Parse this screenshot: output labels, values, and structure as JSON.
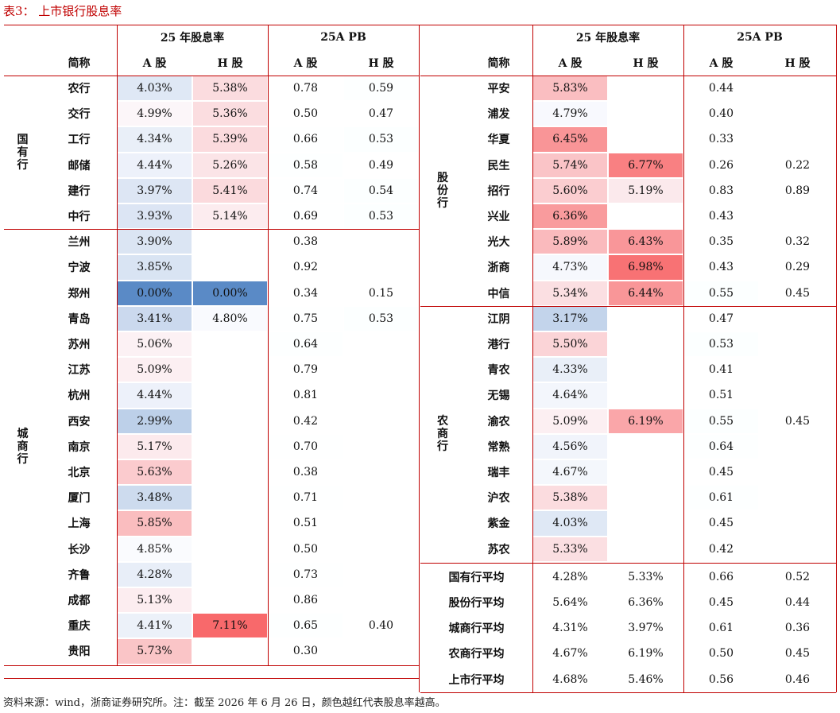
{
  "title": "表3： 上市银行股息率",
  "source": "资料来源：wind，浙商证券研究所。注：截至 2026 年 6 月 26 日，颜色越红代表股息率越高。",
  "colors": {
    "accent": "#c00000",
    "high": "#f8696b",
    "low": "#5a8ac6"
  },
  "headers": {
    "group1": "25 年股息率",
    "group2": "25A PB",
    "name": "简称",
    "a": "A 股",
    "h": "H 股"
  },
  "left": {
    "groups": [
      {
        "label": "国有行",
        "rows": [
          {
            "name": "农行",
            "a": "4.03%",
            "h": "5.38%",
            "pa": "0.78",
            "ph": "0.59"
          },
          {
            "name": "交行",
            "a": "4.99%",
            "h": "5.36%",
            "pa": "0.50",
            "ph": "0.47"
          },
          {
            "name": "工行",
            "a": "4.34%",
            "h": "5.39%",
            "pa": "0.66",
            "ph": "0.53"
          },
          {
            "name": "邮储",
            "a": "4.44%",
            "h": "5.26%",
            "pa": "0.58",
            "ph": "0.49"
          },
          {
            "name": "建行",
            "a": "3.97%",
            "h": "5.41%",
            "pa": "0.74",
            "ph": "0.54"
          },
          {
            "name": "中行",
            "a": "3.93%",
            "h": "5.14%",
            "pa": "0.69",
            "ph": "0.53"
          }
        ]
      },
      {
        "label": "城商行",
        "rows": [
          {
            "name": "兰州",
            "a": "3.90%",
            "h": "",
            "pa": "0.38",
            "ph": ""
          },
          {
            "name": "宁波",
            "a": "3.85%",
            "h": "",
            "pa": "0.92",
            "ph": ""
          },
          {
            "name": "郑州",
            "a": "0.00%",
            "h": "0.00%",
            "pa": "0.34",
            "ph": "0.15"
          },
          {
            "name": "青岛",
            "a": "3.41%",
            "h": "4.80%",
            "pa": "0.75",
            "ph": "0.53"
          },
          {
            "name": "苏州",
            "a": "5.06%",
            "h": "",
            "pa": "0.64",
            "ph": ""
          },
          {
            "name": "江苏",
            "a": "5.09%",
            "h": "",
            "pa": "0.79",
            "ph": ""
          },
          {
            "name": "杭州",
            "a": "4.44%",
            "h": "",
            "pa": "0.81",
            "ph": ""
          },
          {
            "name": "西安",
            "a": "2.99%",
            "h": "",
            "pa": "0.42",
            "ph": ""
          },
          {
            "name": "南京",
            "a": "5.17%",
            "h": "",
            "pa": "0.70",
            "ph": ""
          },
          {
            "name": "北京",
            "a": "5.63%",
            "h": "",
            "pa": "0.38",
            "ph": ""
          },
          {
            "name": "厦门",
            "a": "3.48%",
            "h": "",
            "pa": "0.71",
            "ph": ""
          },
          {
            "name": "上海",
            "a": "5.85%",
            "h": "",
            "pa": "0.51",
            "ph": ""
          },
          {
            "name": "长沙",
            "a": "4.85%",
            "h": "",
            "pa": "0.50",
            "ph": ""
          },
          {
            "name": "齐鲁",
            "a": "4.28%",
            "h": "",
            "pa": "0.73",
            "ph": ""
          },
          {
            "name": "成都",
            "a": "5.13%",
            "h": "",
            "pa": "0.86",
            "ph": ""
          },
          {
            "name": "重庆",
            "a": "4.41%",
            "h": "7.11%",
            "pa": "0.65",
            "ph": "0.40"
          },
          {
            "name": "贵阳",
            "a": "5.73%",
            "h": "",
            "pa": "0.30",
            "ph": ""
          }
        ]
      }
    ]
  },
  "right": {
    "groups": [
      {
        "label": "股份行",
        "rows": [
          {
            "name": "平安",
            "a": "5.83%",
            "h": "",
            "pa": "0.44",
            "ph": ""
          },
          {
            "name": "浦发",
            "a": "4.79%",
            "h": "",
            "pa": "0.40",
            "ph": ""
          },
          {
            "name": "华夏",
            "a": "6.45%",
            "h": "",
            "pa": "0.33",
            "ph": ""
          },
          {
            "name": "民生",
            "a": "5.74%",
            "h": "6.77%",
            "pa": "0.26",
            "ph": "0.22"
          },
          {
            "name": "招行",
            "a": "5.60%",
            "h": "5.19%",
            "pa": "0.83",
            "ph": "0.89"
          },
          {
            "name": "兴业",
            "a": "6.36%",
            "h": "",
            "pa": "0.43",
            "ph": ""
          },
          {
            "name": "光大",
            "a": "5.89%",
            "h": "6.43%",
            "pa": "0.35",
            "ph": "0.32"
          },
          {
            "name": "浙商",
            "a": "4.73%",
            "h": "6.98%",
            "pa": "0.43",
            "ph": "0.29"
          },
          {
            "name": "中信",
            "a": "5.34%",
            "h": "6.44%",
            "pa": "0.55",
            "ph": "0.45"
          }
        ]
      },
      {
        "label": "农商行",
        "rows": [
          {
            "name": "江阴",
            "a": "3.17%",
            "h": "",
            "pa": "0.47",
            "ph": ""
          },
          {
            "name": "港行",
            "a": "5.50%",
            "h": "",
            "pa": "0.53",
            "ph": ""
          },
          {
            "name": "青农",
            "a": "4.33%",
            "h": "",
            "pa": "0.41",
            "ph": ""
          },
          {
            "name": "无锡",
            "a": "4.64%",
            "h": "",
            "pa": "0.51",
            "ph": ""
          },
          {
            "name": "渝农",
            "a": "5.09%",
            "h": "6.19%",
            "pa": "0.55",
            "ph": "0.45"
          },
          {
            "name": "常熟",
            "a": "4.56%",
            "h": "",
            "pa": "0.64",
            "ph": ""
          },
          {
            "name": "瑞丰",
            "a": "4.67%",
            "h": "",
            "pa": "0.45",
            "ph": ""
          },
          {
            "name": "沪农",
            "a": "5.38%",
            "h": "",
            "pa": "0.61",
            "ph": ""
          },
          {
            "name": "紫金",
            "a": "4.03%",
            "h": "",
            "pa": "0.45",
            "ph": ""
          },
          {
            "name": "苏农",
            "a": "5.33%",
            "h": "",
            "pa": "0.42",
            "ph": ""
          }
        ]
      }
    ],
    "averages": [
      {
        "name": "国有行平均",
        "a": "4.28%",
        "h": "5.33%",
        "pa": "0.66",
        "ph": "0.52"
      },
      {
        "name": "股份行平均",
        "a": "5.64%",
        "h": "6.36%",
        "pa": "0.45",
        "ph": "0.44"
      },
      {
        "name": "城商行平均",
        "a": "4.31%",
        "h": "3.97%",
        "pa": "0.61",
        "ph": "0.36"
      },
      {
        "name": "农商行平均",
        "a": "4.67%",
        "h": "6.19%",
        "pa": "0.50",
        "ph": "0.45"
      },
      {
        "name": "上市行平均",
        "a": "4.68%",
        "h": "5.46%",
        "pa": "0.56",
        "ph": "0.46"
      }
    ]
  }
}
